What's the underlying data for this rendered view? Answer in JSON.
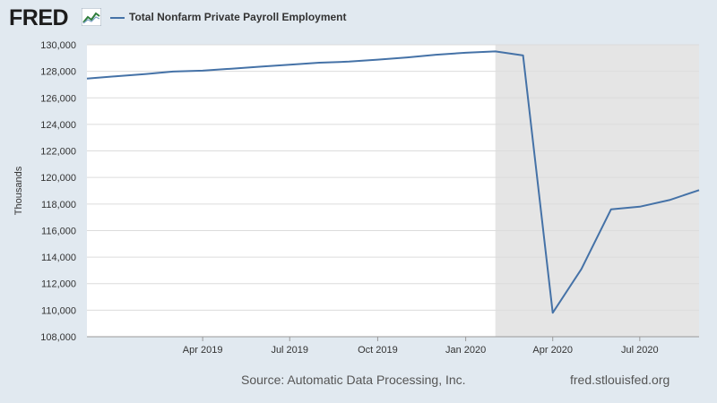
{
  "header": {
    "logo_text": "FRED",
    "logo_icon": "fred-chart-icon",
    "legend_label": "Total Nonfarm Private Payroll Employment"
  },
  "footer": {
    "source": "Source: Automatic Data Processing, Inc.",
    "url": "fred.stlouisfed.org"
  },
  "colors": {
    "line": "#4572a7",
    "recession": "#e5e5e5",
    "background": "#e1e9f0"
  },
  "chart_data": {
    "type": "line",
    "ylabel": "Thousands",
    "ylim": [
      108000,
      130000
    ],
    "ytick_step": 2000,
    "xlim": [
      "2018-12-01",
      "2020-09-01"
    ],
    "xticks": [
      {
        "date": "2019-04-01",
        "label": "Apr 2019"
      },
      {
        "date": "2019-07-01",
        "label": "Jul 2019"
      },
      {
        "date": "2019-10-01",
        "label": "Oct 2019"
      },
      {
        "date": "2020-01-01",
        "label": "Jan 2020"
      },
      {
        "date": "2020-04-01",
        "label": "Apr 2020"
      },
      {
        "date": "2020-07-01",
        "label": "Jul 2020"
      }
    ],
    "recession": {
      "start": "2020-02-01",
      "end": "2020-09-01"
    },
    "grid": true,
    "series": [
      {
        "name": "Total Nonfarm Private Payroll Employment",
        "x": [
          "2018-12-01",
          "2019-01-01",
          "2019-02-01",
          "2019-03-01",
          "2019-04-01",
          "2019-05-01",
          "2019-06-01",
          "2019-07-01",
          "2019-08-01",
          "2019-09-01",
          "2019-10-01",
          "2019-11-01",
          "2019-12-01",
          "2020-01-01",
          "2020-02-01",
          "2020-03-01",
          "2020-04-01",
          "2020-05-01",
          "2020-06-01",
          "2020-07-01",
          "2020-08-01",
          "2020-09-01"
        ],
        "y": [
          127450,
          127630,
          127800,
          127980,
          128050,
          128200,
          128350,
          128500,
          128650,
          128730,
          128880,
          129050,
          129250,
          129400,
          129500,
          129200,
          109800,
          113100,
          117600,
          117800,
          118300,
          119050
        ]
      }
    ]
  }
}
